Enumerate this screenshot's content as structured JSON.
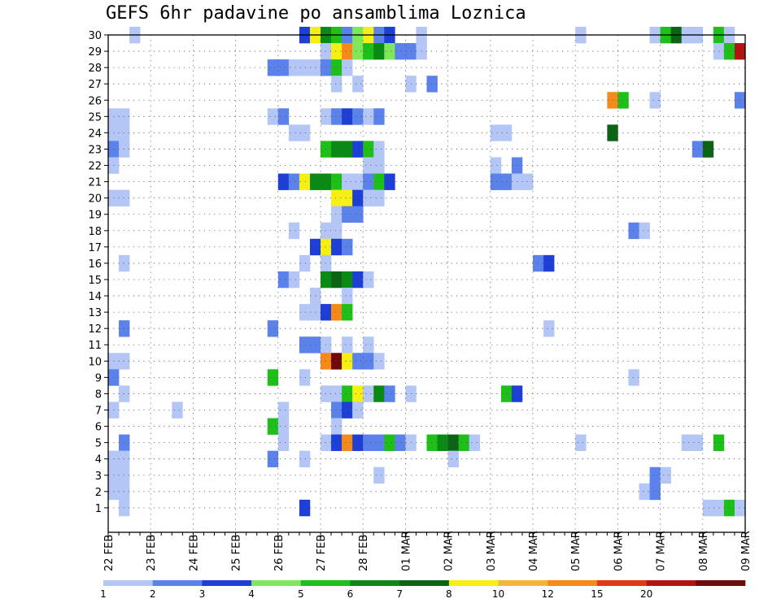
{
  "chart_data": {
    "type": "heatmap",
    "title": "GEFS 6hr padavine po ansamblima Loznica",
    "xlabel": "",
    "ylabel": "",
    "x_ticks": [
      "22 FEB",
      "23 FEB",
      "24 FEB",
      "25 FEB",
      "26 FEB",
      "27 FEB",
      "28 FEB",
      "01 MAR",
      "02 MAR",
      "03 MAR",
      "04 MAR",
      "05 MAR",
      "06 MAR",
      "07 MAR",
      "08 MAR",
      "09 MAR"
    ],
    "y_ticks": [
      "1",
      "2",
      "3",
      "4",
      "5",
      "6",
      "7",
      "8",
      "9",
      "10",
      "11",
      "12",
      "13",
      "14",
      "15",
      "16",
      "17",
      "18",
      "19",
      "20",
      "21",
      "22",
      "23",
      "24",
      "25",
      "26",
      "27",
      "28",
      "29",
      "30"
    ],
    "xlim": [
      0,
      60
    ],
    "ylim": [
      0,
      30
    ],
    "grid": true,
    "legend": {
      "placement": "bottom",
      "labels": [
        "1",
        "2",
        "3",
        "4",
        "5",
        "6",
        "7",
        "8",
        "10",
        "12",
        "15",
        "20"
      ],
      "colors": [
        "#b3c6f5",
        "#5b82ea",
        "#1d3fd6",
        "#7fe85a",
        "#1fbf1a",
        "#0a8a14",
        "#0a6414",
        "#f5ef14",
        "#f7b43a",
        "#f58a1a",
        "#e03a12",
        "#b21414",
        "#6e0a0a"
      ]
    },
    "color_levels": [
      "#b3c6f5",
      "#5b82ea",
      "#1d3fd6",
      "#7fe85a",
      "#1fbf1a",
      "#0a8a14",
      "#0a6414",
      "#f5ef14",
      "#f7b43a",
      "#f58a1a",
      "#e03a12",
      "#b21414",
      "#6e0a0a"
    ],
    "cells_note_units": "x = 6-hour step index from 22 FEB 00Z, y = ensemble member, level = color index 0-12",
    "cells": [
      [
        2,
        30,
        0
      ],
      [
        18,
        30,
        2
      ],
      [
        19,
        30,
        7
      ],
      [
        20,
        30,
        5
      ],
      [
        21,
        30,
        4
      ],
      [
        22,
        30,
        1
      ],
      [
        23,
        30,
        3
      ],
      [
        24,
        30,
        7
      ],
      [
        25,
        30,
        1
      ],
      [
        26,
        30,
        2
      ],
      [
        29,
        30,
        0
      ],
      [
        44,
        30,
        0
      ],
      [
        51,
        30,
        0
      ],
      [
        52,
        30,
        4
      ],
      [
        53,
        30,
        6
      ],
      [
        54,
        30,
        0
      ],
      [
        55,
        30,
        0
      ],
      [
        57,
        30,
        4
      ],
      [
        58,
        30,
        0
      ],
      [
        20,
        29,
        0
      ],
      [
        21,
        29,
        7
      ],
      [
        22,
        29,
        9
      ],
      [
        23,
        29,
        3
      ],
      [
        24,
        29,
        4
      ],
      [
        25,
        29,
        5
      ],
      [
        26,
        29,
        3
      ],
      [
        27,
        29,
        1
      ],
      [
        28,
        29,
        1
      ],
      [
        29,
        29,
        0
      ],
      [
        57,
        29,
        0
      ],
      [
        58,
        29,
        4
      ],
      [
        59,
        29,
        11
      ],
      [
        15,
        28,
        1
      ],
      [
        16,
        28,
        1
      ],
      [
        17,
        28,
        0
      ],
      [
        18,
        28,
        0
      ],
      [
        19,
        28,
        0
      ],
      [
        20,
        28,
        1
      ],
      [
        21,
        28,
        4
      ],
      [
        22,
        28,
        0
      ],
      [
        21,
        27,
        0
      ],
      [
        23,
        27,
        0
      ],
      [
        28,
        27,
        0
      ],
      [
        30,
        27,
        1
      ],
      [
        47,
        26,
        9
      ],
      [
        48,
        26,
        4
      ],
      [
        51,
        26,
        0
      ],
      [
        59,
        26,
        1
      ],
      [
        0,
        25,
        0
      ],
      [
        1,
        25,
        0
      ],
      [
        15,
        25,
        0
      ],
      [
        16,
        25,
        1
      ],
      [
        20,
        25,
        0
      ],
      [
        21,
        25,
        1
      ],
      [
        22,
        25,
        2
      ],
      [
        23,
        25,
        1
      ],
      [
        24,
        25,
        0
      ],
      [
        25,
        25,
        1
      ],
      [
        0,
        24,
        0
      ],
      [
        1,
        24,
        0
      ],
      [
        17,
        24,
        0
      ],
      [
        18,
        24,
        0
      ],
      [
        36,
        24,
        0
      ],
      [
        37,
        24,
        0
      ],
      [
        47,
        24,
        6
      ],
      [
        0,
        23,
        1
      ],
      [
        1,
        23,
        0
      ],
      [
        20,
        23,
        4
      ],
      [
        21,
        23,
        5
      ],
      [
        22,
        23,
        5
      ],
      [
        23,
        23,
        2
      ],
      [
        24,
        23,
        4
      ],
      [
        25,
        23,
        0
      ],
      [
        55,
        23,
        1
      ],
      [
        56,
        23,
        6
      ],
      [
        0,
        22,
        0
      ],
      [
        24,
        22,
        0
      ],
      [
        25,
        22,
        0
      ],
      [
        36,
        22,
        0
      ],
      [
        38,
        22,
        1
      ],
      [
        16,
        21,
        2
      ],
      [
        17,
        21,
        1
      ],
      [
        18,
        21,
        7
      ],
      [
        19,
        21,
        5
      ],
      [
        20,
        21,
        5
      ],
      [
        21,
        21,
        4
      ],
      [
        22,
        21,
        0
      ],
      [
        23,
        21,
        0
      ],
      [
        24,
        21,
        1
      ],
      [
        25,
        21,
        4
      ],
      [
        26,
        21,
        2
      ],
      [
        36,
        21,
        1
      ],
      [
        37,
        21,
        1
      ],
      [
        38,
        21,
        0
      ],
      [
        39,
        21,
        0
      ],
      [
        0,
        20,
        0
      ],
      [
        1,
        20,
        0
      ],
      [
        21,
        20,
        7
      ],
      [
        22,
        20,
        7
      ],
      [
        23,
        20,
        2
      ],
      [
        24,
        20,
        0
      ],
      [
        25,
        20,
        0
      ],
      [
        21,
        19,
        0
      ],
      [
        22,
        19,
        1
      ],
      [
        23,
        19,
        1
      ],
      [
        17,
        18,
        0
      ],
      [
        20,
        18,
        0
      ],
      [
        21,
        18,
        0
      ],
      [
        49,
        18,
        1
      ],
      [
        50,
        18,
        0
      ],
      [
        19,
        17,
        2
      ],
      [
        20,
        17,
        7
      ],
      [
        21,
        17,
        2
      ],
      [
        22,
        17,
        1
      ],
      [
        1,
        16,
        0
      ],
      [
        18,
        16,
        0
      ],
      [
        20,
        16,
        0
      ],
      [
        40,
        16,
        1
      ],
      [
        41,
        16,
        2
      ],
      [
        16,
        15,
        1
      ],
      [
        17,
        15,
        0
      ],
      [
        20,
        15,
        5
      ],
      [
        21,
        15,
        6
      ],
      [
        22,
        15,
        5
      ],
      [
        23,
        15,
        2
      ],
      [
        24,
        15,
        0
      ],
      [
        19,
        14,
        0
      ],
      [
        22,
        14,
        0
      ],
      [
        18,
        13,
        0
      ],
      [
        19,
        13,
        0
      ],
      [
        20,
        13,
        2
      ],
      [
        21,
        13,
        9
      ],
      [
        22,
        13,
        4
      ],
      [
        1,
        12,
        1
      ],
      [
        15,
        12,
        1
      ],
      [
        41,
        12,
        0
      ],
      [
        18,
        11,
        1
      ],
      [
        19,
        11,
        1
      ],
      [
        20,
        11,
        0
      ],
      [
        22,
        11,
        0
      ],
      [
        24,
        11,
        0
      ],
      [
        0,
        10,
        0
      ],
      [
        1,
        10,
        0
      ],
      [
        20,
        10,
        9
      ],
      [
        21,
        10,
        12
      ],
      [
        22,
        10,
        7
      ],
      [
        23,
        10,
        1
      ],
      [
        24,
        10,
        1
      ],
      [
        25,
        10,
        0
      ],
      [
        0,
        9,
        1
      ],
      [
        15,
        9,
        4
      ],
      [
        18,
        9,
        0
      ],
      [
        49,
        9,
        0
      ],
      [
        1,
        8,
        0
      ],
      [
        20,
        8,
        0
      ],
      [
        21,
        8,
        0
      ],
      [
        22,
        8,
        4
      ],
      [
        23,
        8,
        7
      ],
      [
        24,
        8,
        0
      ],
      [
        25,
        8,
        5
      ],
      [
        26,
        8,
        1
      ],
      [
        28,
        8,
        0
      ],
      [
        37,
        8,
        4
      ],
      [
        38,
        8,
        2
      ],
      [
        0,
        7,
        0
      ],
      [
        6,
        7,
        0
      ],
      [
        16,
        7,
        0
      ],
      [
        21,
        7,
        1
      ],
      [
        22,
        7,
        2
      ],
      [
        23,
        7,
        0
      ],
      [
        15,
        6,
        4
      ],
      [
        16,
        6,
        0
      ],
      [
        21,
        6,
        0
      ],
      [
        1,
        5,
        1
      ],
      [
        16,
        5,
        0
      ],
      [
        20,
        5,
        0
      ],
      [
        21,
        5,
        2
      ],
      [
        22,
        5,
        9
      ],
      [
        23,
        5,
        2
      ],
      [
        24,
        5,
        1
      ],
      [
        25,
        5,
        1
      ],
      [
        26,
        5,
        4
      ],
      [
        27,
        5,
        1
      ],
      [
        28,
        5,
        0
      ],
      [
        30,
        5,
        4
      ],
      [
        31,
        5,
        5
      ],
      [
        32,
        5,
        6
      ],
      [
        33,
        5,
        4
      ],
      [
        34,
        5,
        0
      ],
      [
        44,
        5,
        0
      ],
      [
        54,
        5,
        0
      ],
      [
        55,
        5,
        0
      ],
      [
        57,
        5,
        4
      ],
      [
        0,
        4,
        0
      ],
      [
        1,
        4,
        0
      ],
      [
        15,
        4,
        1
      ],
      [
        18,
        4,
        0
      ],
      [
        32,
        4,
        0
      ],
      [
        0,
        3,
        0
      ],
      [
        1,
        3,
        0
      ],
      [
        25,
        3,
        0
      ],
      [
        51,
        3,
        1
      ],
      [
        52,
        3,
        0
      ],
      [
        0,
        2,
        0
      ],
      [
        1,
        2,
        0
      ],
      [
        50,
        2,
        0
      ],
      [
        51,
        2,
        1
      ],
      [
        1,
        1,
        0
      ],
      [
        18,
        1,
        2
      ],
      [
        56,
        1,
        0
      ],
      [
        57,
        1,
        0
      ],
      [
        58,
        1,
        4
      ],
      [
        59,
        1,
        0
      ]
    ]
  }
}
